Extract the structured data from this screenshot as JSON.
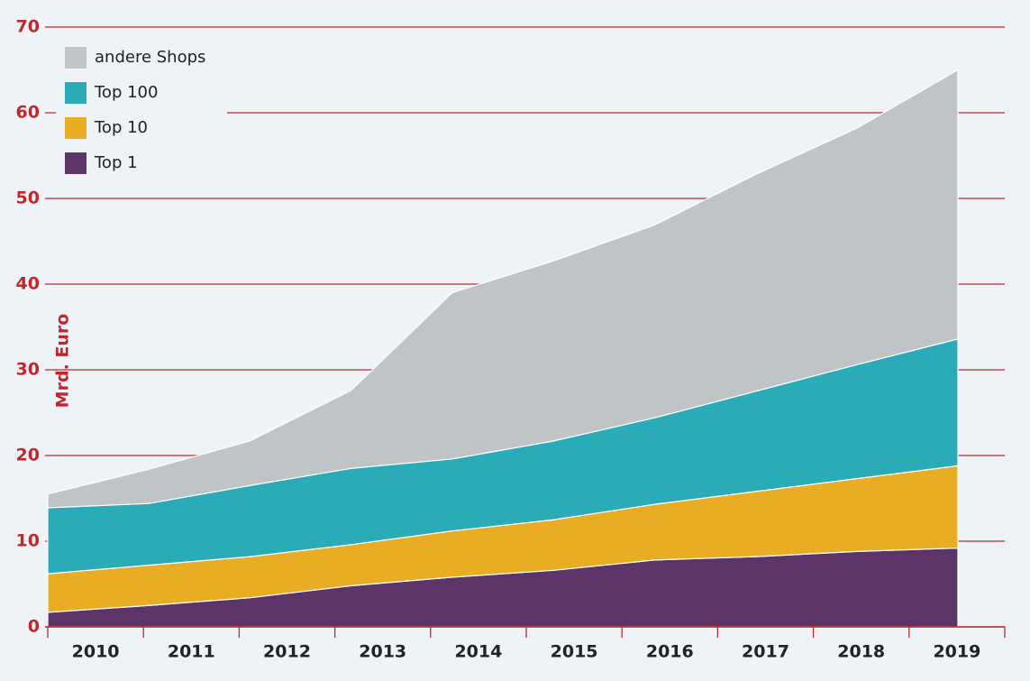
{
  "chart_data": {
    "type": "stacked_area",
    "ylabel": "Mrd. Euro",
    "categories": [
      "2010",
      "2011",
      "2012",
      "2013",
      "2014",
      "2015",
      "2016",
      "2017",
      "2018",
      "2019"
    ],
    "series": [
      {
        "name": "Top 1",
        "color": "#5c3468",
        "values": [
          1.7,
          2.5,
          3.4,
          4.8,
          5.8,
          6.6,
          7.8,
          8.2,
          8.8,
          9.2
        ]
      },
      {
        "name": "Top 10",
        "color": "#e8ad22",
        "values": [
          4.5,
          4.7,
          4.8,
          4.8,
          5.4,
          5.9,
          6.5,
          7.6,
          8.5,
          9.6
        ]
      },
      {
        "name": "Top 100",
        "color": "#2aabb8",
        "values": [
          7.7,
          7.2,
          8.3,
          8.9,
          8.4,
          9.2,
          10.1,
          11.7,
          13.3,
          14.8
        ]
      },
      {
        "name": "andere Shops",
        "color": "#bfc4c6",
        "values": [
          1.6,
          4.0,
          5.2,
          9.1,
          19.4,
          21.0,
          22.5,
          25.3,
          27.6,
          31.4
        ]
      }
    ],
    "ylim": [
      0,
      70
    ],
    "yticks": [
      0,
      10,
      20,
      30,
      40,
      50,
      60,
      70
    ],
    "grid": true,
    "legend": "upper left"
  }
}
